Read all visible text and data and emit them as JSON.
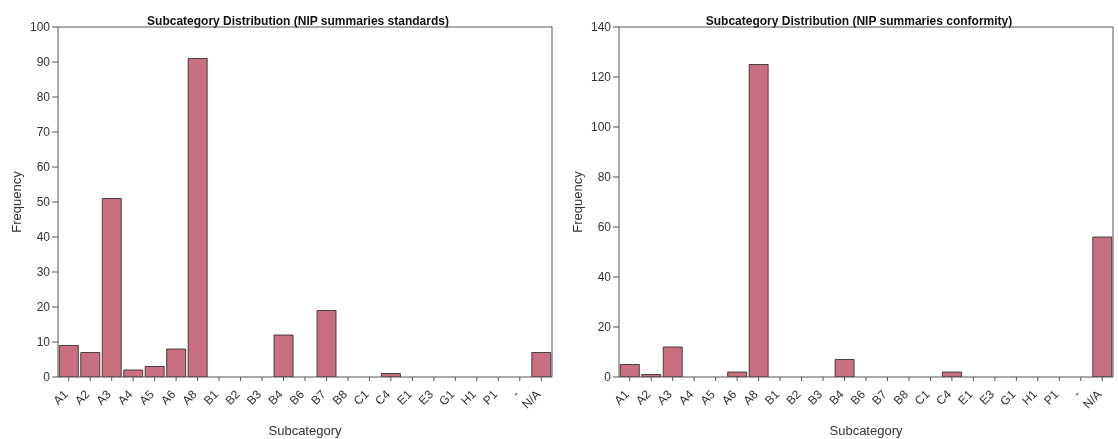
{
  "chart_data": [
    {
      "type": "bar",
      "title": "Subcategory Distribution (NIP summaries standards)",
      "xlabel": "Subcategory",
      "ylabel": "Frequency",
      "categories": [
        "A1",
        "A2",
        "A3",
        "A4",
        "A5",
        "A6",
        "A8",
        "B1",
        "B2",
        "B3",
        "B4",
        "B6",
        "B7",
        "B8",
        "C1",
        "C4",
        "E1",
        "E3",
        "G1",
        "H1",
        "P1",
        "-",
        "N/A"
      ],
      "values": [
        9,
        7,
        51,
        2,
        3,
        8,
        91,
        0,
        0,
        0,
        12,
        0,
        19,
        0,
        0,
        1,
        0,
        0,
        0,
        0,
        0,
        0,
        7
      ],
      "color": "#c87080",
      "ylim": [
        0,
        100
      ],
      "yticks": [
        0,
        10,
        20,
        30,
        40,
        50,
        60,
        70,
        80,
        90,
        100
      ],
      "grid": false,
      "legend": false
    },
    {
      "type": "bar",
      "title": "Subcategory Distribution (NIP summaries conformity)",
      "xlabel": "Subcategory",
      "ylabel": "Frequency",
      "categories": [
        "A1",
        "A2",
        "A3",
        "A4",
        "A5",
        "A6",
        "A8",
        "B1",
        "B2",
        "B3",
        "B4",
        "B6",
        "B7",
        "B8",
        "C1",
        "C4",
        "E1",
        "E3",
        "G1",
        "H1",
        "P1",
        "-",
        "N/A"
      ],
      "values": [
        5,
        1,
        12,
        0,
        0,
        2,
        125,
        0,
        0,
        0,
        7,
        0,
        0,
        0,
        0,
        2,
        0,
        0,
        0,
        0,
        0,
        0,
        56
      ],
      "color": "#c87080",
      "ylim": [
        0,
        140
      ],
      "yticks": [
        0,
        20,
        40,
        60,
        80,
        100,
        120,
        140
      ],
      "grid": false,
      "legend": false
    }
  ]
}
